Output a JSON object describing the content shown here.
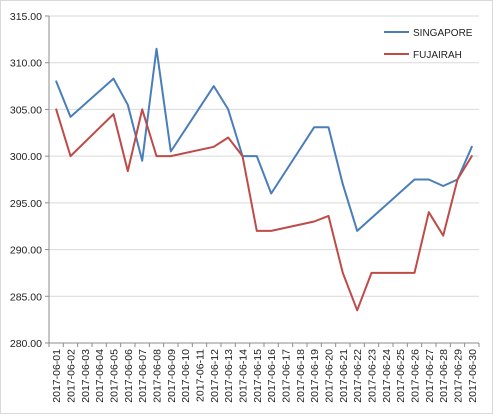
{
  "chart_data": {
    "type": "line",
    "x": [
      "2017-06-01",
      "2017-06-02",
      "2017-06-03",
      "2017-06-04",
      "2017-06-05",
      "2017-06-06",
      "2017-06-07",
      "2017-06-08",
      "2017-06-09",
      "2017-06-10",
      "2017-06-11",
      "2017-06-12",
      "2017-06-13",
      "2017-06-14",
      "2017-06-15",
      "2017-06-16",
      "2017-06-17",
      "2017-06-18",
      "2017-06-19",
      "2017-06-20",
      "2017-06-21",
      "2017-06-22",
      "2017-06-23",
      "2017-06-24",
      "2017-06-25",
      "2017-06-26",
      "2017-06-27",
      "2017-06-28",
      "2017-06-29",
      "2017-06-30"
    ],
    "series": [
      {
        "name": "SINGAPORE",
        "color": "#4a7ebb",
        "values": [
          308.0,
          304.2,
          null,
          null,
          308.3,
          305.5,
          299.5,
          311.5,
          300.5,
          null,
          null,
          307.5,
          305.0,
          300.0,
          300.0,
          296.0,
          null,
          null,
          303.1,
          303.1,
          297.0,
          292.0,
          null,
          null,
          null,
          297.5,
          297.5,
          296.8,
          297.5,
          301.0
        ]
      },
      {
        "name": "FUJAIRAH",
        "color": "#be4b48",
        "values": [
          305.0,
          300.0,
          null,
          null,
          304.5,
          298.4,
          305.0,
          300.0,
          300.0,
          null,
          null,
          301.0,
          302.0,
          300.0,
          292.0,
          292.0,
          null,
          null,
          293.0,
          293.6,
          287.5,
          283.5,
          287.5,
          null,
          null,
          287.5,
          294.0,
          291.5,
          297.5,
          300.0
        ]
      }
    ],
    "ylim": [
      280.0,
      315.0
    ],
    "yticks": [
      "280.00",
      "285.00",
      "290.00",
      "295.00",
      "300.00",
      "305.00",
      "310.00",
      "315.00"
    ],
    "grid": "horizontal",
    "legend": "top-right"
  }
}
